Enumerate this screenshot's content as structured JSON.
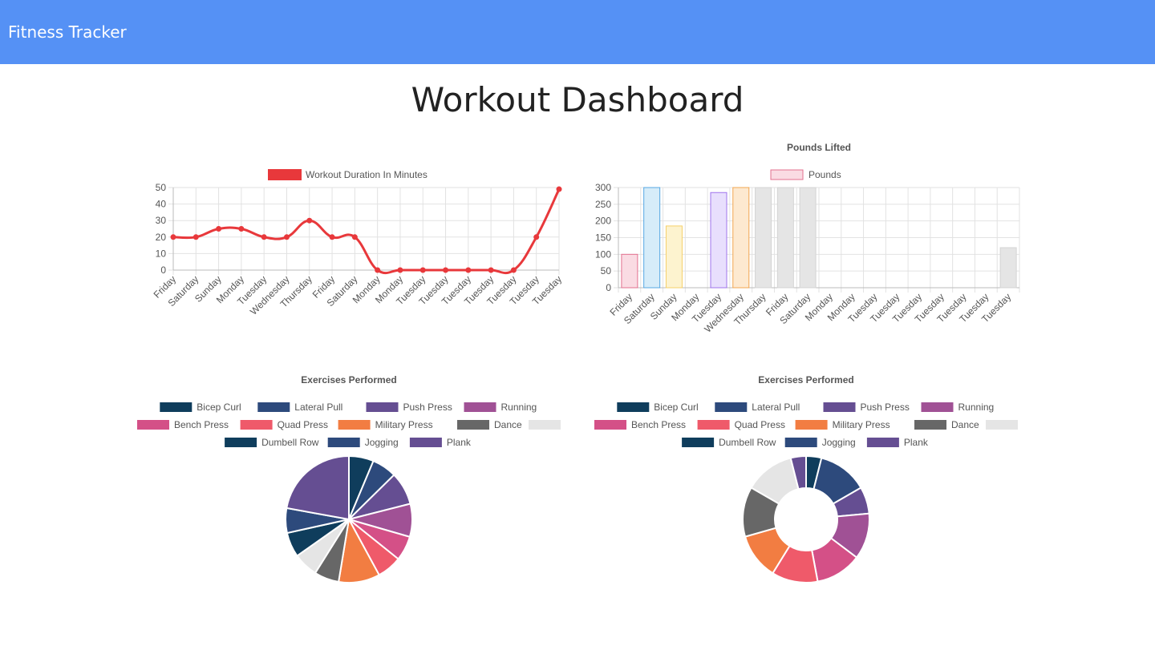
{
  "navbar": {
    "brand": "Fitness Tracker"
  },
  "page": {
    "title": "Workout Dashboard"
  },
  "colors": {
    "navbar": "#5591f5",
    "line": "#e8383b",
    "pie": [
      "#0f3d5c",
      "#2d4a7c",
      "#654e92",
      "#a05195",
      "#d45087",
      "#ef5a6a",
      "#f27d42",
      "#676767",
      "#e5e5e5"
    ]
  },
  "chart_data": [
    {
      "type": "line",
      "title": "",
      "legend": [
        "Workout Duration In Minutes"
      ],
      "legend_position": "top",
      "categories": [
        "Friday",
        "Saturday",
        "Sunday",
        "Monday",
        "Tuesday",
        "Wednesday",
        "Thursday",
        "Friday",
        "Saturday",
        "Monday",
        "Monday",
        "Tuesday",
        "Tuesday",
        "Tuesday",
        "Tuesday",
        "Tuesday",
        "Tuesday",
        "Tuesday"
      ],
      "series": [
        {
          "name": "Workout Duration In Minutes",
          "values": [
            20,
            20,
            25,
            25,
            20,
            20,
            30,
            20,
            20,
            0,
            0,
            0,
            0,
            0,
            0,
            0,
            20,
            49
          ]
        }
      ],
      "ylim": [
        0,
        50
      ],
      "yticks": [
        0,
        10,
        20,
        30,
        40,
        50
      ],
      "grid": true
    },
    {
      "type": "bar",
      "title": "Pounds Lifted",
      "legend": [
        "Pounds"
      ],
      "legend_position": "top",
      "categories": [
        "Friday",
        "Saturday",
        "Sunday",
        "Monday",
        "Tuesday",
        "Wednesday",
        "Thursday",
        "Friday",
        "Saturday",
        "Monday",
        "Monday",
        "Tuesday",
        "Tuesday",
        "Tuesday",
        "Tuesday",
        "Tuesday",
        "Tuesday",
        "Tuesday"
      ],
      "series": [
        {
          "name": "Pounds",
          "values": [
            100,
            300,
            185,
            0,
            285,
            300,
            300,
            300,
            300,
            0,
            0,
            0,
            0,
            0,
            0,
            0,
            0,
            120
          ]
        }
      ],
      "bar_fills": [
        "#fadbe3",
        "#d6ecf9",
        "#fdf3cf",
        "#dcf2f2",
        "#e8dffd",
        "#fde9d0",
        "#e5e5e5",
        "#e5e5e5",
        "#e5e5e5",
        "#e5e5e5",
        "#e5e5e5",
        "#e5e5e5",
        "#e5e5e5",
        "#e5e5e5",
        "#e5e5e5",
        "#e5e5e5",
        "#e5e5e5",
        "#e5e5e5"
      ],
      "bar_strokes": [
        "#e3708f",
        "#56a7e3",
        "#f5d06a",
        "#5cc4c4",
        "#9f74ec",
        "#f2a650",
        "#d4d4d4",
        "#d4d4d4",
        "#d4d4d4",
        "#d4d4d4",
        "#d4d4d4",
        "#d4d4d4",
        "#d4d4d4",
        "#d4d4d4",
        "#d4d4d4",
        "#d4d4d4",
        "#d4d4d4",
        "#d4d4d4"
      ],
      "ylim": [
        0,
        300
      ],
      "yticks": [
        0,
        50,
        100,
        150,
        200,
        250,
        300
      ],
      "grid": true
    },
    {
      "type": "pie",
      "title": "Exercises Performed",
      "legend_position": "top",
      "labels": [
        "Bicep Curl",
        "Lateral Pull",
        "Push Press",
        "Running",
        "Bench Press",
        "Quad Press",
        "Military Press",
        "Dance",
        "",
        "Dumbell Row",
        "Jogging",
        "Plank"
      ],
      "values": [
        5.7,
        5.7,
        7.6,
        7.6,
        5.7,
        5.7,
        9.5,
        5.7,
        5.7,
        5.7,
        5.7,
        20
      ]
    },
    {
      "type": "doughnut",
      "title": "Exercises Performed",
      "legend_position": "top",
      "labels": [
        "Bicep Curl",
        "Lateral Pull",
        "Push Press",
        "Running",
        "Bench Press",
        "Quad Press",
        "Military Press",
        "Dance",
        "",
        "Dumbell Row",
        "Jogging",
        "Plank"
      ],
      "values": [
        4,
        13,
        7,
        12,
        12,
        12,
        12,
        13,
        13,
        0,
        0,
        4
      ]
    }
  ]
}
